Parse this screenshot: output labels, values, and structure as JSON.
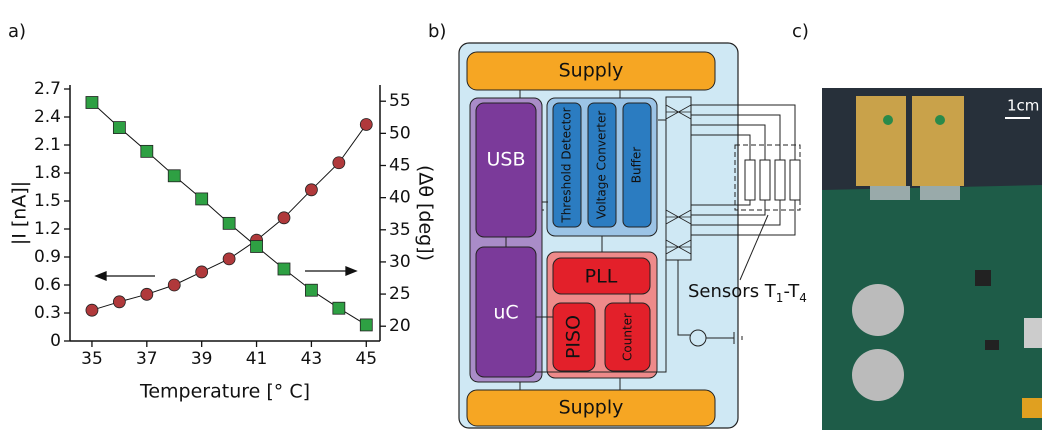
{
  "panel_labels": [
    "a)",
    "b)",
    "c)"
  ],
  "chart_data": {
    "type": "line",
    "xlabel": "Temperature [° C]",
    "ylabel": "|I [nA]|",
    "y2label": "(Δθ [deg])",
    "x": [
      35,
      36,
      37,
      38,
      39,
      40,
      41,
      42,
      43,
      44,
      45
    ],
    "xlim": [
      34.2,
      45.5
    ],
    "xticks": [
      35,
      37,
      39,
      41,
      43,
      45
    ],
    "ylim": [
      0,
      2.7
    ],
    "yticks": [
      0,
      {
        "value": 0.3,
        "label": "0.3"
      },
      {
        "value": 0.6,
        "label": "0.6"
      },
      {
        "value": 0.9,
        "label": "0.9"
      },
      {
        "value": 1.2,
        "label": "1.2"
      },
      {
        "value": 1.5,
        "label": "1.5"
      },
      {
        "value": 1.8,
        "label": "1.8"
      },
      {
        "value": 2.1,
        "label": "2.1"
      },
      {
        "value": 2.4,
        "label": "2.4"
      },
      {
        "value": 2.7,
        "label": "2.7"
      }
    ],
    "y2lim": [
      17.7,
      56.9
    ],
    "y2ticks": [
      20,
      25,
      30,
      35,
      40,
      45,
      50,
      55
    ],
    "series": [
      {
        "marker": "circle",
        "color": "#b0393b",
        "values": [
          0.33,
          0.42,
          0.5,
          0.6,
          0.74,
          0.88,
          1.08,
          1.32,
          1.62,
          1.91,
          2.32
        ]
      },
      {
        "marker": "square",
        "color": "#2ea043",
        "axis": "y2",
        "values": [
          54.8,
          50.9,
          47.2,
          43.4,
          39.8,
          36.0,
          32.4,
          28.9,
          25.6,
          22.8,
          20.2
        ]
      }
    ]
  },
  "diagram": {
    "supply_top": "Supply",
    "supply_bottom": "Supply",
    "usb": "USB",
    "uc": "uC",
    "threshold": "Threshold Detector",
    "voltage": "Voltage Converter",
    "buffer": "Buffer",
    "pll": "PLL",
    "piso": "PISO",
    "counter": "Counter",
    "sensors": [
      "Sensors T",
      "1",
      "-T",
      "4"
    ]
  },
  "photo": {
    "scale": "1cm"
  }
}
